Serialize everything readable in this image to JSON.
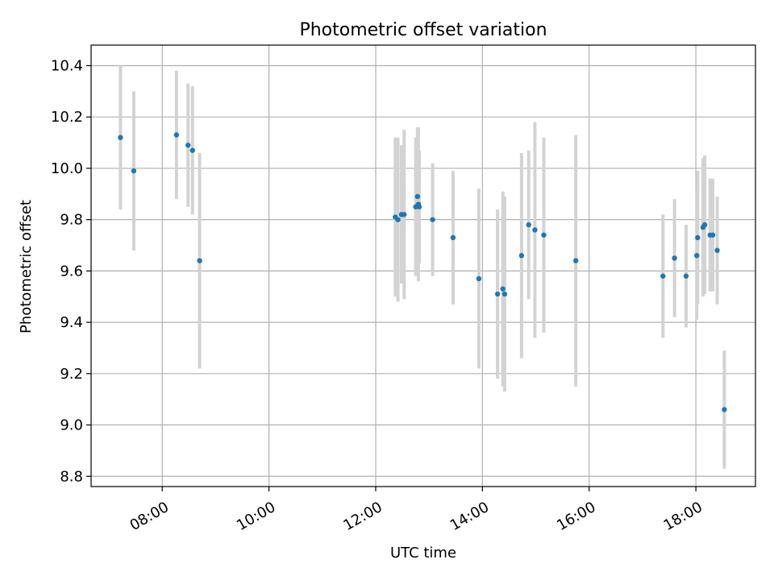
{
  "chart_data": {
    "type": "scatter",
    "title": "Photometric offset variation",
    "xlabel": "UTC time",
    "ylabel": "Photometric offset",
    "x_tick_labels": [
      "08:00",
      "10:00",
      "12:00",
      "14:00",
      "16:00",
      "18:00"
    ],
    "y_tick_labels": [
      "8.8",
      "9.0",
      "9.2",
      "9.4",
      "9.6",
      "9.8",
      "10.0",
      "10.2",
      "10.4"
    ],
    "xlim": [
      "06:40",
      "19:07"
    ],
    "ylim": [
      8.76,
      10.48
    ],
    "grid": true,
    "marker_color": "#1f77b4",
    "errorbar_color": "#d3d3d3",
    "points": [
      {
        "x": "07:13",
        "y": 10.12,
        "err": 0.28
      },
      {
        "x": "07:28",
        "y": 9.99,
        "err": 0.31
      },
      {
        "x": "08:16",
        "y": 10.13,
        "err": 0.25
      },
      {
        "x": "08:29",
        "y": 10.09,
        "err": 0.24
      },
      {
        "x": "08:34",
        "y": 10.07,
        "err": 0.25
      },
      {
        "x": "08:42",
        "y": 9.64,
        "err": 0.42
      },
      {
        "x": "12:22",
        "y": 9.81,
        "err": 0.31
      },
      {
        "x": "12:25",
        "y": 9.8,
        "err": 0.32
      },
      {
        "x": "12:29",
        "y": 9.82,
        "err": 0.27
      },
      {
        "x": "12:32",
        "y": 9.82,
        "err": 0.33
      },
      {
        "x": "12:45",
        "y": 9.85,
        "err": 0.27
      },
      {
        "x": "12:47",
        "y": 9.89,
        "err": 0.27
      },
      {
        "x": "12:48",
        "y": 9.86,
        "err": 0.3
      },
      {
        "x": "12:49",
        "y": 9.85,
        "err": 0.22
      },
      {
        "x": "13:04",
        "y": 9.8,
        "err": 0.22
      },
      {
        "x": "13:27",
        "y": 9.73,
        "err": 0.26
      },
      {
        "x": "13:56",
        "y": 9.57,
        "err": 0.35
      },
      {
        "x": "14:17",
        "y": 9.51,
        "err": 0.33
      },
      {
        "x": "14:23",
        "y": 9.53,
        "err": 0.38
      },
      {
        "x": "14:25",
        "y": 9.51,
        "err": 0.38
      },
      {
        "x": "14:44",
        "y": 9.66,
        "err": 0.4
      },
      {
        "x": "14:52",
        "y": 9.78,
        "err": 0.29
      },
      {
        "x": "14:59",
        "y": 9.76,
        "err": 0.42
      },
      {
        "x": "15:09",
        "y": 9.74,
        "err": 0.38
      },
      {
        "x": "15:45",
        "y": 9.64,
        "err": 0.49
      },
      {
        "x": "17:23",
        "y": 9.58,
        "err": 0.24
      },
      {
        "x": "17:36",
        "y": 9.65,
        "err": 0.23
      },
      {
        "x": "17:49",
        "y": 9.58,
        "err": 0.2
      },
      {
        "x": "18:01",
        "y": 9.66,
        "err": 0.25
      },
      {
        "x": "18:02",
        "y": 9.73,
        "err": 0.26
      },
      {
        "x": "18:08",
        "y": 9.77,
        "err": 0.27
      },
      {
        "x": "18:10",
        "y": 9.78,
        "err": 0.27
      },
      {
        "x": "18:16",
        "y": 9.74,
        "err": 0.22
      },
      {
        "x": "18:19",
        "y": 9.74,
        "err": 0.22
      },
      {
        "x": "18:24",
        "y": 9.68,
        "err": 0.21
      },
      {
        "x": "18:32",
        "y": 9.06,
        "err": 0.23
      }
    ]
  }
}
